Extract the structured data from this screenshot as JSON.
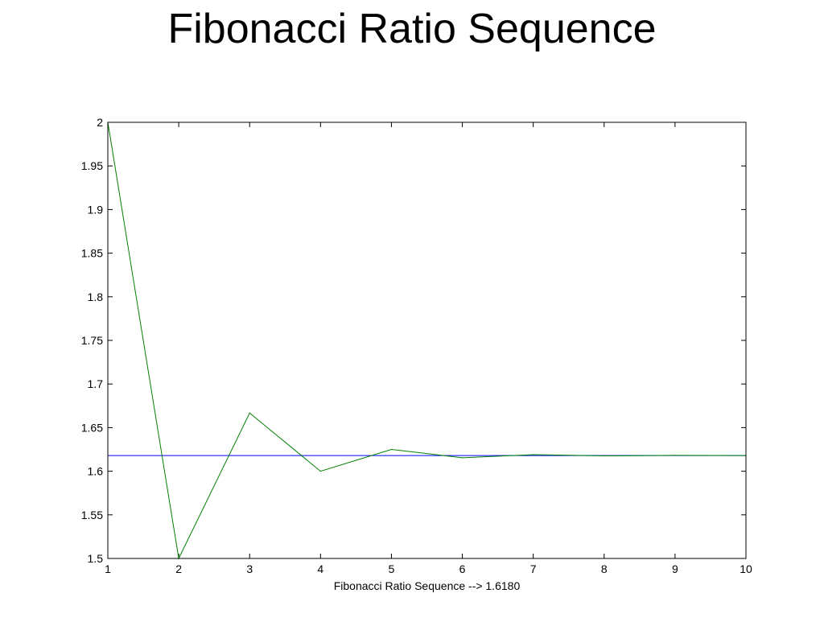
{
  "slide": {
    "title": "Fibonacci Ratio Sequence"
  },
  "chart_data": {
    "type": "line",
    "title": "",
    "xlabel": "Fibonacci Ratio Sequence --> 1.6180",
    "ylabel": "",
    "xlim": [
      1,
      10
    ],
    "ylim": [
      1.5,
      2
    ],
    "x_ticks": [
      "1",
      "2",
      "3",
      "4",
      "5",
      "6",
      "7",
      "8",
      "9",
      "10"
    ],
    "y_ticks": [
      "1.5",
      "1.55",
      "1.6",
      "1.65",
      "1.7",
      "1.75",
      "1.8",
      "1.85",
      "1.9",
      "1.95",
      "2"
    ],
    "grid": false,
    "legend": "none",
    "series": [
      {
        "color": "#008000",
        "x": [
          1,
          2,
          3,
          4,
          5,
          6,
          7,
          8,
          9,
          10
        ],
        "y": [
          2.0,
          1.5,
          1.6667,
          1.6,
          1.625,
          1.6154,
          1.619,
          1.6176,
          1.6182,
          1.618
        ]
      }
    ],
    "reference_line": {
      "y": 1.618,
      "color": "#0000ff"
    }
  }
}
